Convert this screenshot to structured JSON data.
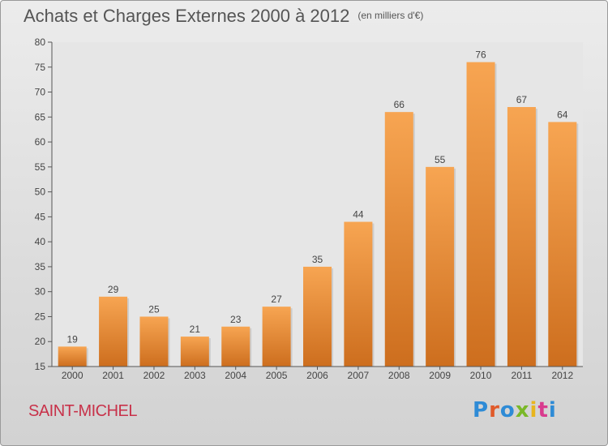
{
  "chart_data": {
    "type": "bar",
    "title": "Achats et Charges Externes 2000 à 2012",
    "subtitle": "(en milliers d'€)",
    "xlabel": "",
    "ylabel": "",
    "categories": [
      "2000",
      "2001",
      "2002",
      "2003",
      "2004",
      "2005",
      "2006",
      "2007",
      "2008",
      "2009",
      "2010",
      "2011",
      "2012"
    ],
    "values": [
      19,
      29,
      25,
      21,
      23,
      27,
      35,
      44,
      66,
      55,
      76,
      67,
      64
    ],
    "ylim": [
      15,
      80
    ],
    "yticks": [
      15,
      20,
      25,
      30,
      35,
      40,
      45,
      50,
      55,
      60,
      65,
      70,
      75,
      80
    ],
    "grid": false,
    "legend": "none",
    "bar_color_top": "#f7a552",
    "bar_color_bottom": "#cd6e1e"
  },
  "footer": {
    "place": "SAINT-MICHEL",
    "brand": "Proxiti",
    "brand_colors": [
      "#2e8bd6",
      "#e05a2a",
      "#2e8bd6",
      "#7ab828",
      "#e8b51e",
      "#d93b8e",
      "#2e8bd6"
    ]
  }
}
